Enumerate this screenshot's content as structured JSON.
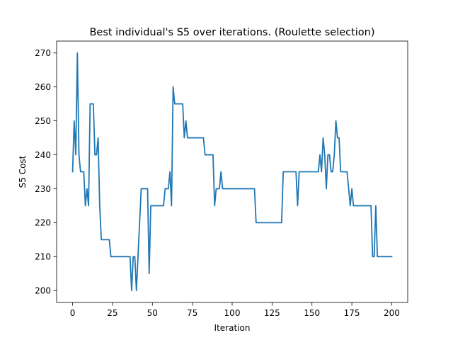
{
  "chart_data": {
    "type": "line",
    "title": "Best individual's S5 over iterations. (Roulette selection)",
    "xlabel": "Iteration",
    "ylabel": "S5 Cost",
    "xlim": [
      -10,
      210
    ],
    "ylim": [
      196.5,
      273.5
    ],
    "xticks": [
      0,
      25,
      50,
      75,
      100,
      125,
      150,
      175,
      200
    ],
    "yticks": [
      200,
      210,
      220,
      230,
      240,
      250,
      260,
      270
    ],
    "grid": false,
    "series": [
      {
        "color": "#1f77b4",
        "points": [
          [
            0,
            235
          ],
          [
            1,
            250
          ],
          [
            2,
            240
          ],
          [
            3,
            270
          ],
          [
            4,
            240
          ],
          [
            5,
            235
          ],
          [
            6,
            235
          ],
          [
            7,
            235
          ],
          [
            8,
            225
          ],
          [
            9,
            230
          ],
          [
            10,
            225
          ],
          [
            11,
            255
          ],
          [
            12,
            255
          ],
          [
            13,
            255
          ],
          [
            14,
            240
          ],
          [
            15,
            240
          ],
          [
            16,
            245
          ],
          [
            17,
            225
          ],
          [
            18,
            215
          ],
          [
            19,
            215
          ],
          [
            20,
            215
          ],
          [
            21,
            215
          ],
          [
            22,
            215
          ],
          [
            23,
            215
          ],
          [
            24,
            210
          ],
          [
            25,
            210
          ],
          [
            26,
            210
          ],
          [
            27,
            210
          ],
          [
            28,
            210
          ],
          [
            29,
            210
          ],
          [
            30,
            210
          ],
          [
            31,
            210
          ],
          [
            32,
            210
          ],
          [
            33,
            210
          ],
          [
            34,
            210
          ],
          [
            35,
            210
          ],
          [
            36,
            210
          ],
          [
            37,
            200
          ],
          [
            38,
            210
          ],
          [
            39,
            210
          ],
          [
            40,
            200
          ],
          [
            41,
            210
          ],
          [
            42,
            220
          ],
          [
            43,
            230
          ],
          [
            44,
            230
          ],
          [
            45,
            230
          ],
          [
            46,
            230
          ],
          [
            47,
            230
          ],
          [
            48,
            205
          ],
          [
            49,
            225
          ],
          [
            50,
            225
          ],
          [
            51,
            225
          ],
          [
            52,
            225
          ],
          [
            53,
            225
          ],
          [
            54,
            225
          ],
          [
            55,
            225
          ],
          [
            56,
            225
          ],
          [
            57,
            225
          ],
          [
            58,
            230
          ],
          [
            59,
            230
          ],
          [
            60,
            230
          ],
          [
            61,
            235
          ],
          [
            62,
            225
          ],
          [
            63,
            260
          ],
          [
            64,
            255
          ],
          [
            65,
            255
          ],
          [
            66,
            255
          ],
          [
            67,
            255
          ],
          [
            68,
            255
          ],
          [
            69,
            255
          ],
          [
            70,
            245
          ],
          [
            71,
            250
          ],
          [
            72,
            245
          ],
          [
            73,
            245
          ],
          [
            74,
            245
          ],
          [
            75,
            245
          ],
          [
            76,
            245
          ],
          [
            77,
            245
          ],
          [
            78,
            245
          ],
          [
            79,
            245
          ],
          [
            80,
            245
          ],
          [
            81,
            245
          ],
          [
            82,
            245
          ],
          [
            83,
            240
          ],
          [
            84,
            240
          ],
          [
            85,
            240
          ],
          [
            86,
            240
          ],
          [
            87,
            240
          ],
          [
            88,
            240
          ],
          [
            89,
            225
          ],
          [
            90,
            230
          ],
          [
            91,
            230
          ],
          [
            92,
            230
          ],
          [
            93,
            235
          ],
          [
            94,
            230
          ],
          [
            95,
            230
          ],
          [
            96,
            230
          ],
          [
            97,
            230
          ],
          [
            98,
            230
          ],
          [
            99,
            230
          ],
          [
            100,
            230
          ],
          [
            101,
            230
          ],
          [
            102,
            230
          ],
          [
            103,
            230
          ],
          [
            104,
            230
          ],
          [
            105,
            230
          ],
          [
            106,
            230
          ],
          [
            107,
            230
          ],
          [
            108,
            230
          ],
          [
            109,
            230
          ],
          [
            110,
            230
          ],
          [
            111,
            230
          ],
          [
            112,
            230
          ],
          [
            113,
            230
          ],
          [
            114,
            230
          ],
          [
            115,
            220
          ],
          [
            116,
            220
          ],
          [
            117,
            220
          ],
          [
            118,
            220
          ],
          [
            119,
            220
          ],
          [
            120,
            220
          ],
          [
            121,
            220
          ],
          [
            122,
            220
          ],
          [
            123,
            220
          ],
          [
            124,
            220
          ],
          [
            125,
            220
          ],
          [
            126,
            220
          ],
          [
            127,
            220
          ],
          [
            128,
            220
          ],
          [
            129,
            220
          ],
          [
            130,
            220
          ],
          [
            131,
            220
          ],
          [
            132,
            235
          ],
          [
            133,
            235
          ],
          [
            134,
            235
          ],
          [
            135,
            235
          ],
          [
            136,
            235
          ],
          [
            137,
            235
          ],
          [
            138,
            235
          ],
          [
            139,
            235
          ],
          [
            140,
            235
          ],
          [
            141,
            225
          ],
          [
            142,
            235
          ],
          [
            143,
            235
          ],
          [
            144,
            235
          ],
          [
            145,
            235
          ],
          [
            146,
            235
          ],
          [
            147,
            235
          ],
          [
            148,
            235
          ],
          [
            149,
            235
          ],
          [
            150,
            235
          ],
          [
            151,
            235
          ],
          [
            152,
            235
          ],
          [
            153,
            235
          ],
          [
            154,
            235
          ],
          [
            155,
            240
          ],
          [
            156,
            235
          ],
          [
            157,
            245
          ],
          [
            158,
            240
          ],
          [
            159,
            230
          ],
          [
            160,
            240
          ],
          [
            161,
            240
          ],
          [
            162,
            235
          ],
          [
            163,
            235
          ],
          [
            164,
            240
          ],
          [
            165,
            250
          ],
          [
            166,
            245
          ],
          [
            167,
            245
          ],
          [
            168,
            235
          ],
          [
            169,
            235
          ],
          [
            170,
            235
          ],
          [
            171,
            235
          ],
          [
            172,
            235
          ],
          [
            173,
            230
          ],
          [
            174,
            225
          ],
          [
            175,
            230
          ],
          [
            176,
            225
          ],
          [
            177,
            225
          ],
          [
            178,
            225
          ],
          [
            179,
            225
          ],
          [
            180,
            225
          ],
          [
            181,
            225
          ],
          [
            182,
            225
          ],
          [
            183,
            225
          ],
          [
            184,
            225
          ],
          [
            185,
            225
          ],
          [
            186,
            225
          ],
          [
            187,
            225
          ],
          [
            188,
            210
          ],
          [
            189,
            210
          ],
          [
            190,
            225
          ],
          [
            191,
            210
          ],
          [
            192,
            210
          ],
          [
            193,
            210
          ],
          [
            194,
            210
          ],
          [
            195,
            210
          ],
          [
            196,
            210
          ],
          [
            197,
            210
          ],
          [
            198,
            210
          ],
          [
            199,
            210
          ],
          [
            200,
            210
          ]
        ]
      }
    ]
  }
}
